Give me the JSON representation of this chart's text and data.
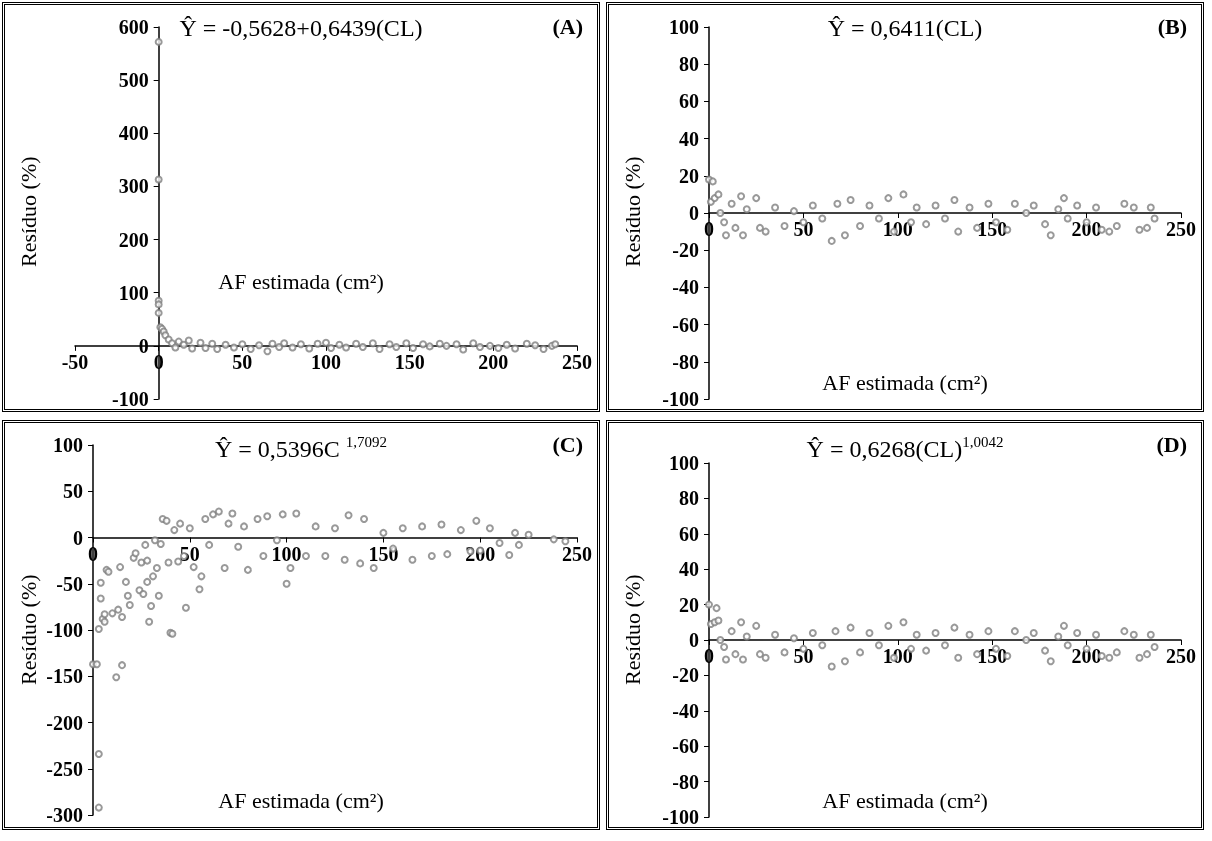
{
  "chart_data": [
    {
      "type": "scatter",
      "title": "Ŷ = -0,5628+0,6439(CL)",
      "xlabel": "AF estimada (cm²)",
      "ylabel": "Resíduo (%)",
      "annotations": [
        "(A)"
      ],
      "marker": "circle",
      "xlim": [
        -50,
        250
      ],
      "ylim": [
        -100,
        600
      ],
      "xticks": [
        -50,
        0,
        50,
        100,
        150,
        200,
        250
      ],
      "yticks": [
        -100,
        0,
        100,
        200,
        300,
        400,
        500,
        600
      ],
      "series": [
        {
          "color": "#808080",
          "x": [
            0,
            0,
            0,
            0,
            0,
            1,
            2,
            3,
            4,
            6,
            8,
            10,
            12,
            15,
            18,
            20,
            25,
            28,
            32,
            35,
            40,
            45,
            50,
            55,
            60,
            65,
            68,
            72,
            75,
            80,
            85,
            90,
            95,
            100,
            103,
            108,
            112,
            118,
            122,
            128,
            132,
            138,
            142,
            148,
            152,
            158,
            162,
            168,
            172,
            178,
            182,
            188,
            192,
            198,
            203,
            208,
            213,
            220,
            225,
            230,
            235,
            237
          ],
          "values": [
            572,
            313,
            85,
            78,
            62,
            35,
            32,
            27,
            20,
            12,
            5,
            -3,
            8,
            2,
            10,
            -5,
            6,
            -4,
            4,
            -6,
            2,
            -3,
            3,
            -6,
            1,
            -10,
            4,
            -2,
            5,
            -3,
            3,
            -5,
            4,
            6,
            -4,
            2,
            -3,
            4,
            -2,
            5,
            -6,
            3,
            -2,
            5,
            -4,
            3,
            -1,
            4,
            0,
            3,
            -7,
            5,
            -2,
            0,
            -4,
            2,
            -5,
            4,
            1,
            -6,
            0,
            3
          ]
        }
      ]
    },
    {
      "type": "scatter",
      "title": "Ŷ = 0,6411(CL)",
      "xlabel": "AF estimada (cm²)",
      "ylabel": "Resíduo (%)",
      "annotations": [
        "(B)"
      ],
      "marker": "circle",
      "xlim": [
        0,
        250
      ],
      "ylim": [
        -100,
        100
      ],
      "xticks": [
        0,
        50,
        100,
        150,
        200,
        250
      ],
      "yticks": [
        -100,
        -80,
        -60,
        -40,
        -20,
        0,
        20,
        40,
        60,
        80,
        100
      ],
      "series": [
        {
          "color": "#808080",
          "x": [
            0,
            2,
            1,
            3,
            5,
            6,
            8,
            9,
            12,
            14,
            17,
            18,
            20,
            25,
            27,
            30,
            35,
            40,
            45,
            50,
            55,
            60,
            65,
            68,
            72,
            75,
            80,
            85,
            90,
            95,
            98,
            103,
            107,
            110,
            115,
            120,
            125,
            130,
            132,
            138,
            142,
            148,
            152,
            158,
            162,
            168,
            172,
            178,
            181,
            185,
            188,
            190,
            195,
            200,
            205,
            208,
            212,
            216,
            220,
            225,
            228,
            232,
            234,
            236
          ],
          "values": [
            18,
            17,
            6,
            8,
            10,
            0,
            -5,
            -12,
            5,
            -8,
            9,
            -12,
            2,
            8,
            -8,
            -10,
            3,
            -7,
            1,
            -5,
            4,
            -3,
            -15,
            5,
            -12,
            7,
            -7,
            4,
            -3,
            8,
            -10,
            10,
            -5,
            3,
            -6,
            4,
            -3,
            7,
            -10,
            3,
            -8,
            5,
            -5,
            -9,
            5,
            0,
            4,
            -6,
            -12,
            2,
            8,
            -3,
            4,
            -5,
            3,
            -9,
            -10,
            -7,
            5,
            3,
            -9,
            -8,
            3,
            -3
          ]
        }
      ]
    },
    {
      "type": "scatter",
      "title": "Ŷ = 0,5396C $^{1,7092}$",
      "xlabel": "AF estimada (cm²)",
      "ylabel": "Resíduo (%)",
      "annotations": [
        "(C)"
      ],
      "marker": "circle",
      "xlim": [
        0,
        250
      ],
      "ylim": [
        -300,
        100
      ],
      "xticks": [
        0,
        50,
        100,
        150,
        200,
        250
      ],
      "yticks": [
        -300,
        -250,
        -200,
        -150,
        -100,
        -50,
        0,
        50,
        100
      ],
      "series": [
        {
          "color": "#808080",
          "x": [
            0,
            2,
            3,
            3,
            3,
            4,
            4,
            5,
            6,
            6,
            7,
            8,
            10,
            12,
            13,
            14,
            15,
            15,
            17,
            18,
            19,
            21,
            22,
            24,
            25,
            26,
            27,
            28,
            28,
            29,
            30,
            31,
            32,
            33,
            34,
            35,
            36,
            38,
            39,
            40,
            41,
            42,
            44,
            45,
            47,
            48,
            50,
            52,
            55,
            56,
            58,
            60,
            62,
            65,
            68,
            70,
            72,
            75,
            78,
            80,
            85,
            88,
            90,
            95,
            98,
            100,
            102,
            105,
            110,
            115,
            120,
            125,
            130,
            132,
            138,
            140,
            145,
            150,
            155,
            160,
            165,
            170,
            175,
            180,
            183,
            190,
            195,
            198,
            200,
            205,
            210,
            215,
            218,
            220,
            225,
            238,
            244
          ],
          "values": [
            -137,
            -137,
            -234,
            -292,
            -99,
            -49,
            -66,
            -88,
            -83,
            -91,
            -35,
            -37,
            -82,
            -151,
            -78,
            -32,
            -138,
            -86,
            -48,
            -63,
            -73,
            -22,
            -17,
            -57,
            -27,
            -61,
            -8,
            -25,
            -48,
            -91,
            -74,
            -42,
            -3,
            -33,
            -63,
            -7,
            20,
            18,
            -27,
            -103,
            -104,
            8,
            -26,
            15,
            -20,
            -76,
            10,
            -32,
            -56,
            -42,
            20,
            -8,
            25,
            28,
            -33,
            15,
            26,
            -10,
            12,
            -35,
            20,
            -20,
            23,
            -3,
            25,
            -50,
            -33,
            26,
            -20,
            12,
            -20,
            10,
            -24,
            24,
            -28,
            20,
            -33,
            5,
            -12,
            10,
            -24,
            12,
            -20,
            14,
            -18,
            8,
            -15,
            18,
            -14,
            10,
            -6,
            -19,
            5,
            -8,
            3,
            -2,
            -4
          ]
        }
      ]
    },
    {
      "type": "scatter",
      "title": "Ŷ = 0,6268(CL)$^{1,0042}$",
      "xlabel": "AF estimada (cm²)",
      "ylabel": "Resíduo (%)",
      "annotations": [
        "(D)"
      ],
      "marker": "circle",
      "xlim": [
        0,
        250
      ],
      "ylim": [
        -100,
        100
      ],
      "xticks": [
        0,
        50,
        100,
        150,
        200,
        250
      ],
      "yticks": [
        -100,
        -80,
        -60,
        -40,
        -20,
        0,
        20,
        40,
        60,
        80,
        100
      ],
      "series": [
        {
          "color": "#808080",
          "x": [
            0,
            4,
            1,
            3,
            5,
            6,
            8,
            9,
            12,
            14,
            17,
            18,
            20,
            25,
            27,
            30,
            35,
            40,
            45,
            50,
            55,
            60,
            65,
            67,
            72,
            75,
            80,
            85,
            90,
            95,
            98,
            103,
            107,
            110,
            115,
            120,
            125,
            130,
            132,
            138,
            142,
            148,
            152,
            158,
            162,
            168,
            172,
            178,
            181,
            185,
            188,
            190,
            195,
            200,
            205,
            208,
            212,
            216,
            220,
            225,
            228,
            232,
            234,
            236
          ],
          "values": [
            20,
            18,
            9,
            10,
            11,
            0,
            -4,
            -11,
            5,
            -8,
            10,
            -11,
            2,
            8,
            -8,
            -10,
            3,
            -7,
            1,
            -5,
            4,
            -3,
            -15,
            5,
            -12,
            7,
            -7,
            4,
            -3,
            8,
            -10,
            10,
            -5,
            3,
            -6,
            4,
            -3,
            7,
            -10,
            3,
            -8,
            5,
            -5,
            -9,
            5,
            0,
            4,
            -6,
            -12,
            2,
            8,
            -3,
            4,
            -5,
            3,
            -9,
            -10,
            -7,
            5,
            3,
            -10,
            -8,
            3,
            -4
          ]
        }
      ]
    }
  ]
}
